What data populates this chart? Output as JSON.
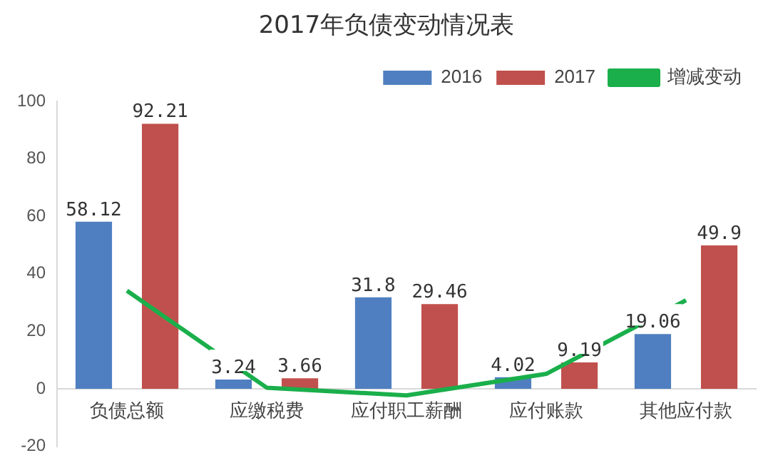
{
  "chart_data": {
    "type": "bar",
    "title": "2017年负债变动情况表",
    "categories": [
      "负债总额",
      "应缴税费",
      "应付职工薪酬",
      "应付账款",
      "其他应付款"
    ],
    "series": [
      {
        "name": "2016",
        "color": "#4f7fc0",
        "values": [
          58.12,
          3.24,
          31.8,
          4.02,
          19.06
        ],
        "value_labels": [
          "58.12",
          "3.24",
          "31.8",
          "4.02",
          "19.06"
        ]
      },
      {
        "name": "2017",
        "color": "#c0504d",
        "values": [
          92.21,
          3.66,
          29.46,
          9.19,
          49.9
        ],
        "value_labels": [
          "92.21",
          "3.66",
          "29.46",
          "9.19",
          "49.9"
        ]
      },
      {
        "name": "增减变动",
        "type": "line",
        "color": "#1aaf4b",
        "values": [
          34.1,
          0.4,
          -2.3,
          5.2,
          30.8
        ]
      }
    ],
    "ylim": [
      -20,
      100
    ],
    "yticks": [
      -20,
      0,
      20,
      40,
      60,
      80,
      100
    ],
    "grid": false,
    "legend": "top right",
    "marker": "none"
  }
}
